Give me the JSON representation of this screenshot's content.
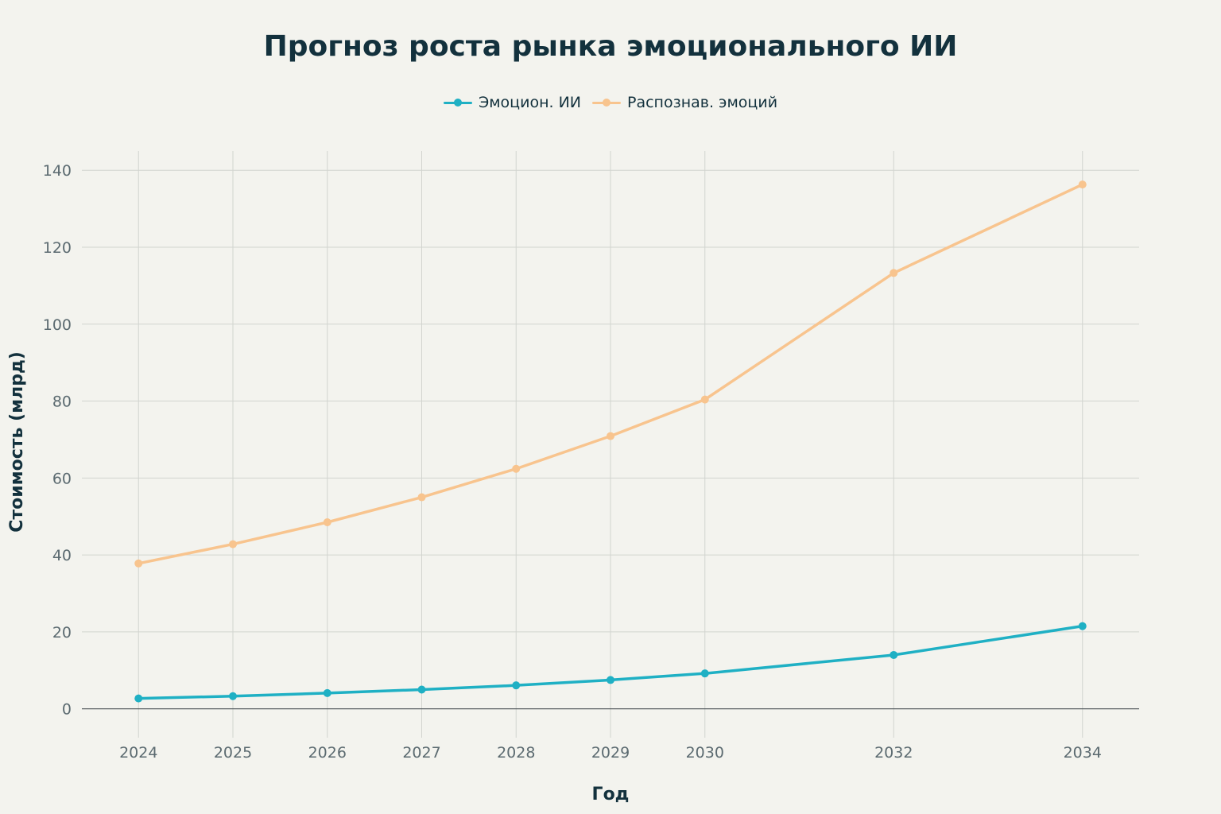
{
  "chart_data": {
    "type": "line",
    "title": "Прогноз роста рынка эмоционального ИИ",
    "xlabel": "Год",
    "ylabel": "Стоимость (млрд)",
    "x": [
      2024,
      2025,
      2026,
      2027,
      2028,
      2029,
      2030,
      2032,
      2034
    ],
    "x_ticks": [
      "2024",
      "2025",
      "2026",
      "2027",
      "2028",
      "2029",
      "2030",
      "2032",
      "2034"
    ],
    "xlim": [
      2023.4,
      2034.6
    ],
    "ylim": [
      -7.5,
      145
    ],
    "y_ticks": [
      "0",
      "20",
      "40",
      "60",
      "80",
      "100",
      "120",
      "140"
    ],
    "grid": true,
    "legend_position": "top-center",
    "series": [
      {
        "name": "Эмоцион. ИИ",
        "color": "#1fb0c4",
        "values": [
          2.7,
          3.3,
          4.1,
          5.0,
          6.1,
          7.5,
          9.2,
          14.0,
          21.5
        ]
      },
      {
        "name": "Распознав. эмоций",
        "color": "#f8c48e",
        "values": [
          37.8,
          42.8,
          48.5,
          55.0,
          62.4,
          70.9,
          80.4,
          113.3,
          136.3
        ]
      }
    ]
  }
}
